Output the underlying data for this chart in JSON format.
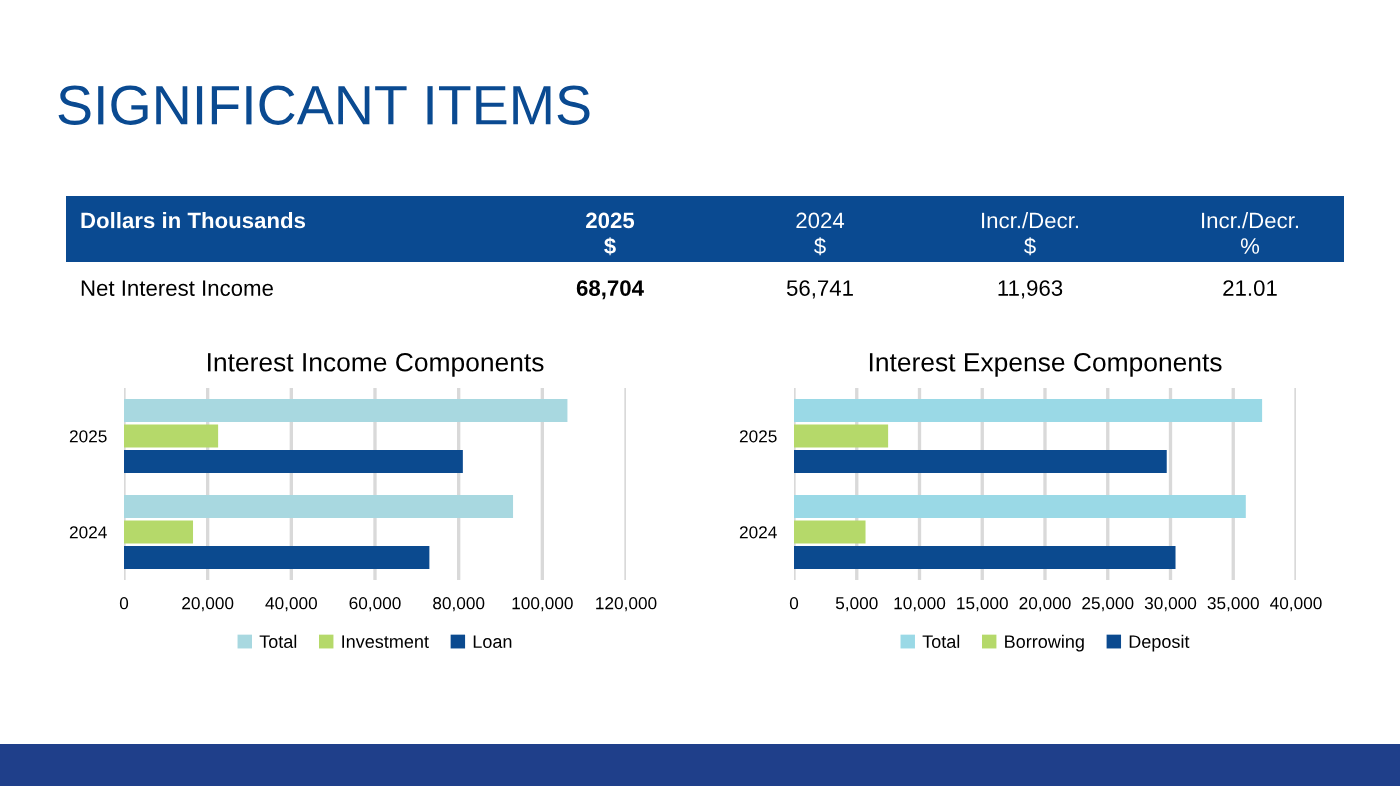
{
  "chart_data": [
    {
      "type": "other",
      "title": "SIGNIFICANT ITEMS",
      "categories": [
        "Dollars in Thousands",
        "2025\n$",
        "2024\n$",
        "Incr./Decr.\n$",
        "Incr./Decr.\n%"
      ],
      "annotations": [
        "Net Interest Income",
        "68,704",
        "56,741",
        "11,963",
        "21.01"
      ]
    },
    {
      "type": "bar",
      "orientation": "horizontal",
      "title": "Interest Income Components",
      "categories": [
        "2025",
        "2024"
      ],
      "series": [
        {
          "name": "Total",
          "color": "#a8d8e0",
          "values": [
            106000,
            93000
          ]
        },
        {
          "name": "Investment",
          "color": "#b5d96a",
          "values": [
            22500,
            16500
          ]
        },
        {
          "name": "Loan",
          "color": "#0b4a8f",
          "values": [
            81000,
            73000
          ]
        }
      ],
      "xlim": [
        0,
        120000
      ],
      "xticks": [
        0,
        {
          "value": 20000,
          "label": "20,000"
        },
        {
          "value": 40000,
          "label": "40,000"
        },
        {
          "value": 60000,
          "label": "60,000"
        },
        {
          "value": 80000,
          "label": "80,000"
        },
        {
          "value": 100000,
          "label": "100,000"
        },
        {
          "value": 120000,
          "label": "120,000"
        }
      ],
      "grid": "x",
      "legend": "bottom"
    },
    {
      "type": "bar",
      "orientation": "horizontal",
      "title": "Interest Expense Components",
      "categories": [
        "2025",
        "2024"
      ],
      "series": [
        {
          "name": "Total",
          "color": "#9ad9e6",
          "values": [
            37300,
            36000
          ]
        },
        {
          "name": "Borrowing",
          "color": "#b5d96a",
          "values": [
            7500,
            5700
          ]
        },
        {
          "name": "Deposit",
          "color": "#0b4a8f",
          "values": [
            29700,
            30400
          ]
        }
      ],
      "xlim": [
        0,
        40000
      ],
      "xticks": [
        0,
        {
          "value": 5000,
          "label": "5,000"
        },
        {
          "value": 10000,
          "label": "10,000"
        },
        {
          "value": 15000,
          "label": "15,000"
        },
        {
          "value": 20000,
          "label": "20,000"
        },
        {
          "value": 25000,
          "label": "25,000"
        },
        {
          "value": 30000,
          "label": "30,000"
        },
        {
          "value": 35000,
          "label": "35,000"
        },
        {
          "value": 40000,
          "label": "40,000"
        }
      ],
      "grid": "x",
      "legend": "bottom"
    }
  ]
}
